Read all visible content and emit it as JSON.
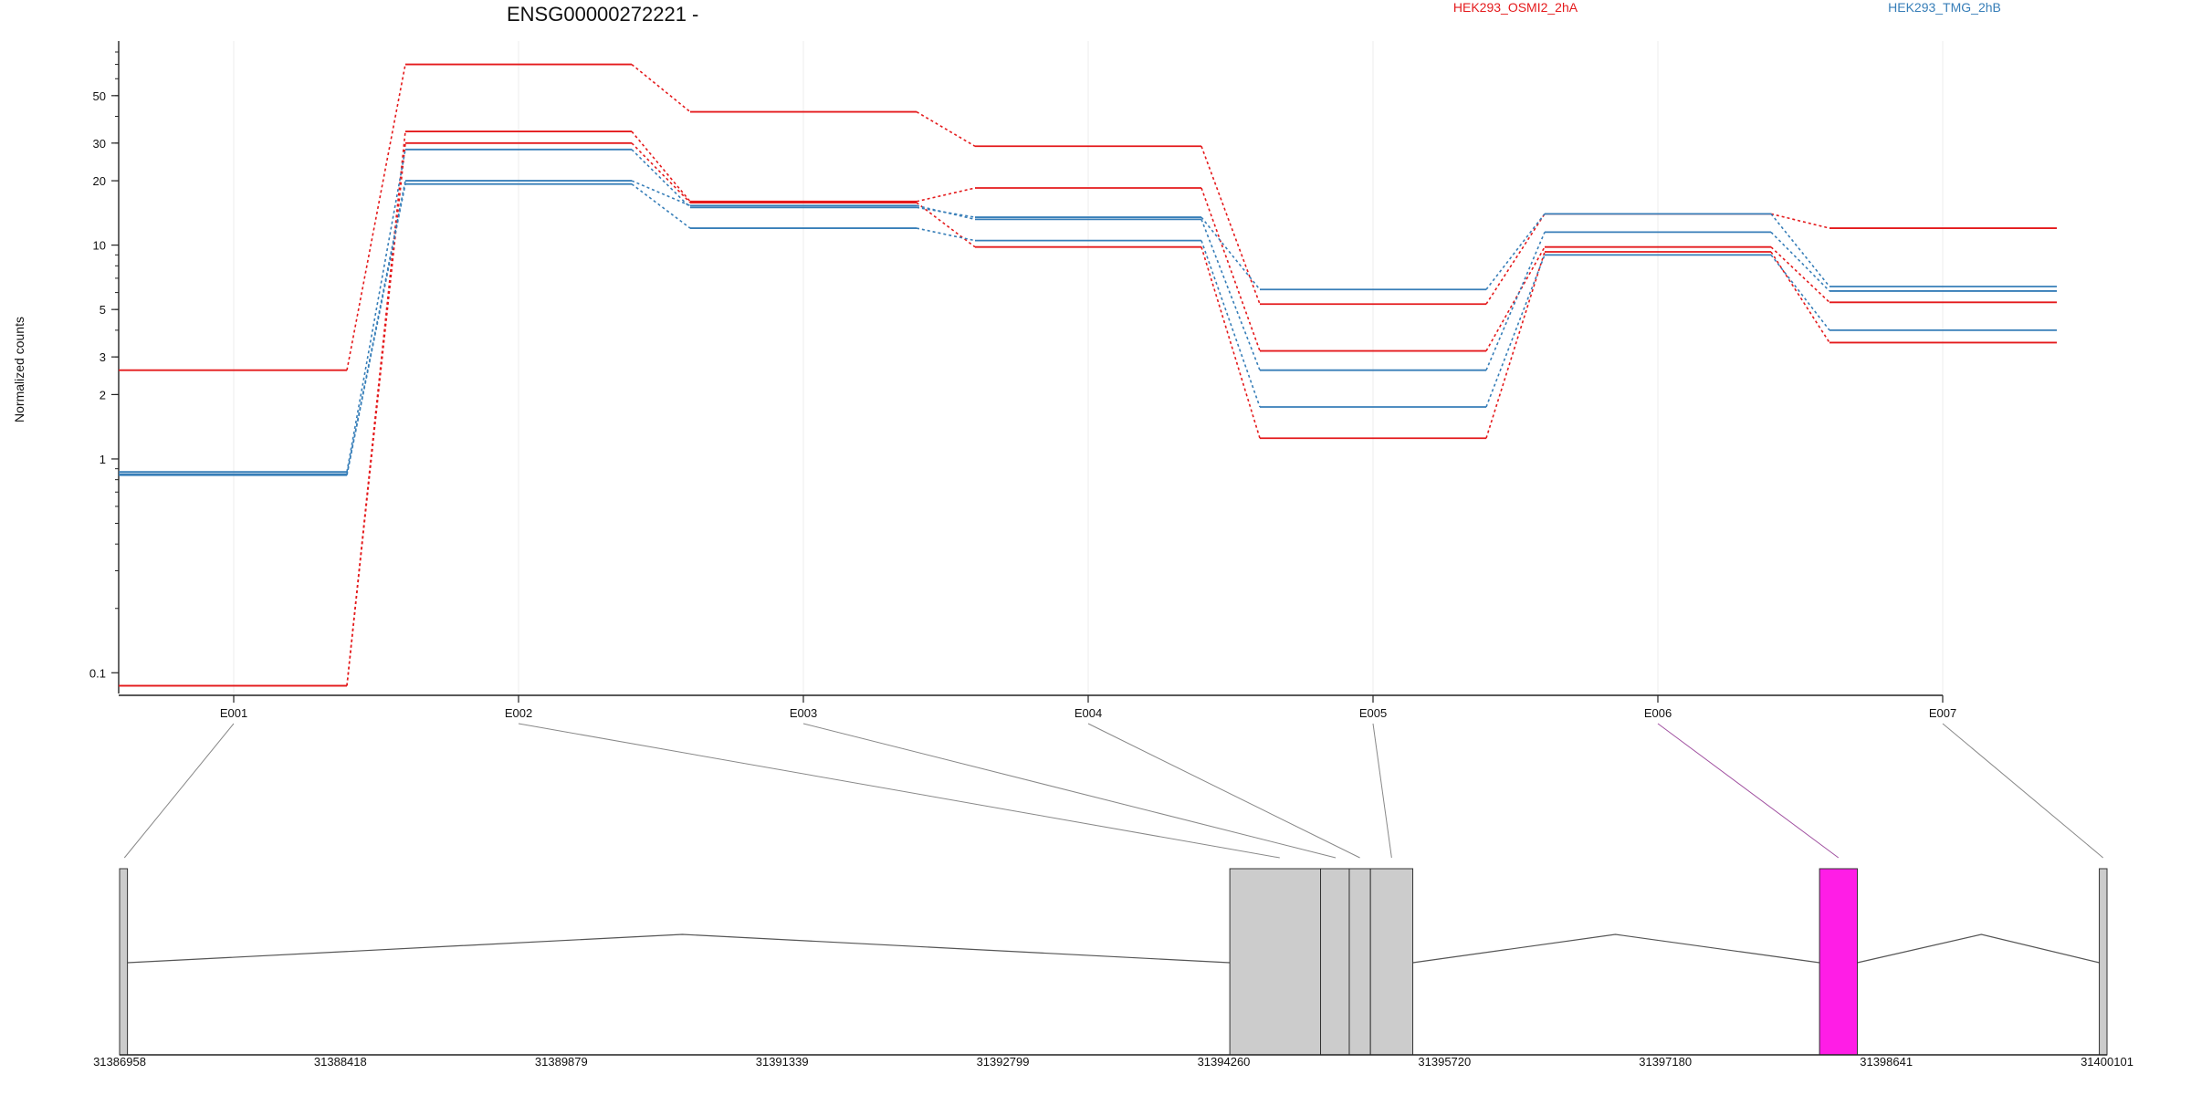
{
  "chart_data": {
    "type": "line",
    "title": "ENSG00000272221 -",
    "ylabel": "Normalized counts",
    "xlabel": "",
    "yscale": "log",
    "ylim": [
      0.08,
      90
    ],
    "yticks": [
      0.1,
      1,
      2,
      3,
      5,
      10,
      20,
      30,
      50
    ],
    "ytick_labels": [
      "0.1",
      "1",
      "2",
      "3",
      "5",
      "10",
      "20",
      "30",
      "50"
    ],
    "grid": "vertical",
    "legend_placement": "top-right",
    "categories": [
      "E001",
      "E002",
      "E003",
      "E004",
      "E005",
      "E006",
      "E007"
    ],
    "legend": [
      {
        "label": "HEK293_OSMI2_2hA",
        "color": "#e41a1c"
      },
      {
        "label": "HEK293_TMG_2hB",
        "color": "#377eb8"
      }
    ],
    "series": [
      {
        "group": "HEK293_OSMI2_2hA",
        "color": "#e41a1c",
        "values": [
          2.6,
          70,
          42,
          29,
          5.3,
          14,
          12
        ]
      },
      {
        "group": "HEK293_OSMI2_2hA",
        "color": "#e41a1c",
        "values": [
          0.087,
          34,
          16,
          18.5,
          3.2,
          9.8,
          5.4
        ]
      },
      {
        "group": "HEK293_OSMI2_2hA",
        "color": "#e41a1c",
        "values": [
          0.087,
          30,
          15.8,
          9.8,
          1.25,
          9.3,
          3.5
        ]
      },
      {
        "group": "HEK293_TMG_2hB",
        "color": "#377eb8",
        "values": [
          0.87,
          28,
          15,
          13.5,
          6.2,
          14,
          6.4
        ]
      },
      {
        "group": "HEK293_TMG_2hB",
        "color": "#377eb8",
        "values": [
          0.85,
          20,
          15.3,
          13.2,
          2.6,
          11.5,
          6.1
        ]
      },
      {
        "group": "HEK293_TMG_2hB",
        "color": "#377eb8",
        "values": [
          0.84,
          19.3,
          12,
          10.5,
          1.75,
          9,
          4
        ]
      }
    ],
    "gene_model": {
      "range": [
        31386958,
        31400101
      ],
      "axis_ticks": [
        31386958,
        31388418,
        31389879,
        31391339,
        31392799,
        31394260,
        31395720,
        31397180,
        31398641,
        31400101
      ],
      "axis_tick_labels": [
        "31386958",
        "31388418",
        "31389879",
        "31391339",
        "31392799",
        "31394260",
        "31395720",
        "31397180",
        "31398641",
        "31400101"
      ],
      "exons": [
        {
          "id": "E001",
          "start": 31386958,
          "end": 31387010,
          "color": "#cccccc"
        },
        {
          "id": "E002",
          "start": 31394300,
          "end": 31394900,
          "color": "#cccccc"
        },
        {
          "id": "E003",
          "start": 31394900,
          "end": 31395090,
          "color": "#cccccc"
        },
        {
          "id": "E004",
          "start": 31395090,
          "end": 31395230,
          "color": "#cccccc"
        },
        {
          "id": "E005",
          "start": 31395230,
          "end": 31395510,
          "color": "#cccccc"
        },
        {
          "id": "E006",
          "start": 31398200,
          "end": 31398450,
          "color": "#ff1de6"
        },
        {
          "id": "E007",
          "start": 31400050,
          "end": 31400101,
          "color": "#cccccc"
        }
      ],
      "exon_links": [
        {
          "exon": "E001",
          "position": 31386990,
          "color": "#888888"
        },
        {
          "exon": "E002",
          "position": 31394630,
          "color": "#888888"
        },
        {
          "exon": "E003",
          "position": 31395000,
          "color": "#888888"
        },
        {
          "exon": "E004",
          "position": 31395160,
          "color": "#888888"
        },
        {
          "exon": "E005",
          "position": 31395370,
          "color": "#888888"
        },
        {
          "exon": "E006",
          "position": 31398325,
          "color": "#a050a0"
        },
        {
          "exon": "E007",
          "position": 31400075,
          "color": "#888888"
        }
      ],
      "introns": [
        {
          "start": 31387010,
          "peak": 31390680,
          "end": 31394300
        },
        {
          "start": 31395510,
          "peak": 31396850,
          "end": 31398200
        },
        {
          "start": 31398450,
          "peak": 31399270,
          "end": 31400050
        }
      ]
    }
  }
}
